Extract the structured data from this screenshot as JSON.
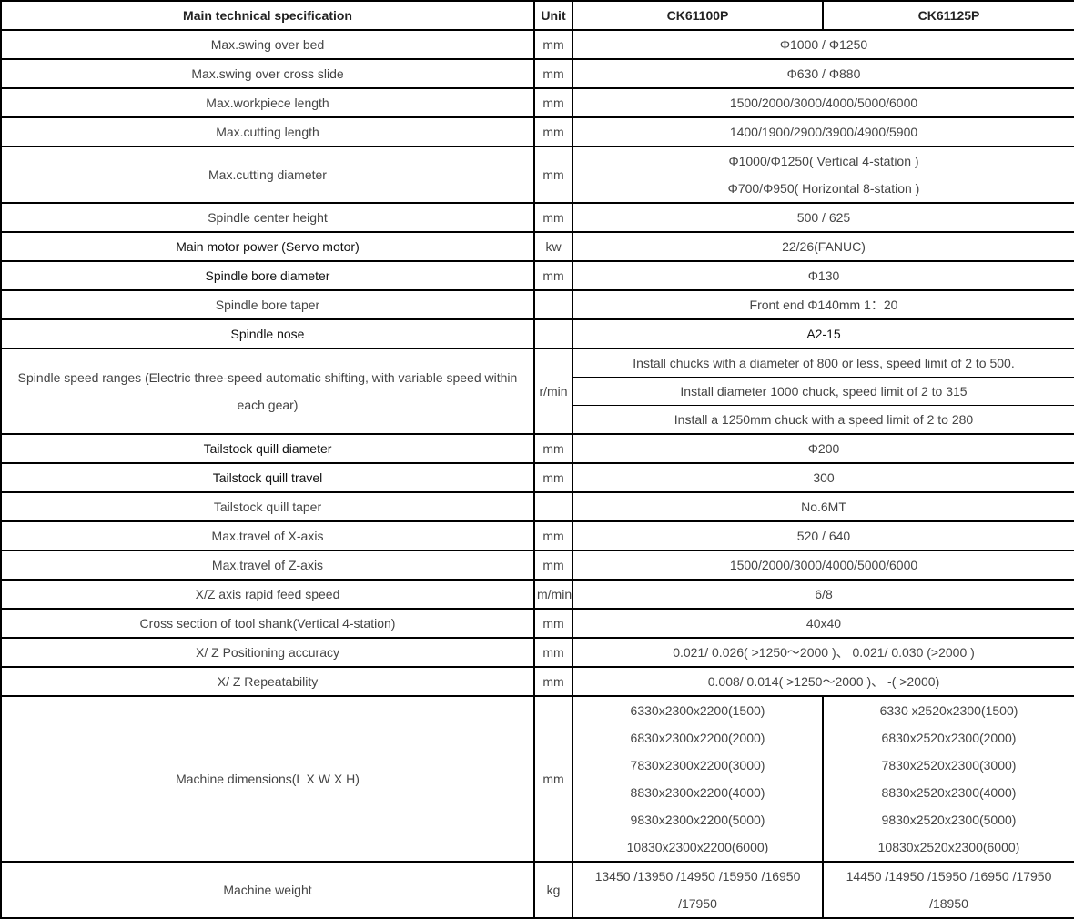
{
  "header": {
    "spec": "Main technical specification",
    "unit": "Unit",
    "model1": "CK61100P",
    "model2": "CK61125P"
  },
  "rows": [
    {
      "spec": "Max.swing over bed",
      "unit": "mm",
      "value": "Φ1000 / Φ1250"
    },
    {
      "spec": "Max.swing over cross slide",
      "unit": "mm",
      "value": "Φ630 / Φ880"
    },
    {
      "spec": "Max.workpiece length",
      "unit": "mm",
      "value": "1500/2000/3000/4000/5000/6000"
    },
    {
      "spec": "Max.cutting length",
      "unit": "mm",
      "value": "1400/1900/2900/3900/4900/5900"
    },
    {
      "spec": "Max.cutting diameter",
      "unit": "mm",
      "lines": [
        "Φ1000/Φ1250( Vertical 4-station )",
        "Φ700/Φ950( Horizontal 8-station )"
      ]
    },
    {
      "spec": "Spindle center height",
      "unit": "mm",
      "value": "500 / 625"
    },
    {
      "spec": "Main motor power (Servo motor)",
      "unit": "kw",
      "value": "22/26(FANUC)"
    },
    {
      "spec": "Spindle bore diameter",
      "unit": "mm",
      "value": "Φ130"
    },
    {
      "spec": "Spindle bore taper",
      "unit": "",
      "value": "Front end Φ140mm 1：20"
    },
    {
      "spec": "Spindle nose",
      "unit": "",
      "value": "A2-15"
    },
    {
      "spec": "Spindle speed ranges (Electric three-speed automatic shifting, with variable speed within each gear)",
      "unit": "r/min",
      "lines": [
        "Install chucks with a diameter of 800 or less, speed limit of 2 to 500.",
        "Install diameter 1000 chuck, speed limit of 2 to 315",
        "Install a 1250mm chuck with a speed limit of 2 to 280"
      ]
    },
    {
      "spec": "Tailstock quill diameter",
      "unit": "mm",
      "value": "Φ200"
    },
    {
      "spec": "Tailstock quill travel",
      "unit": "mm",
      "value": "300"
    },
    {
      "spec": "Tailstock quill taper",
      "unit": "",
      "value": "No.6MT"
    },
    {
      "spec": "Max.travel of X-axis",
      "unit": "mm",
      "value": "520 / 640"
    },
    {
      "spec": "Max.travel of Z-axis",
      "unit": "mm",
      "value": "1500/2000/3000/4000/5000/6000"
    },
    {
      "spec": "X/Z axis rapid feed speed",
      "unit": "m/min",
      "value": "6/8"
    },
    {
      "spec": "Cross section of tool shank(Vertical 4-station)",
      "unit": "mm",
      "value": "40x40"
    },
    {
      "spec": "X/ Z Positioning accuracy",
      "unit": "mm",
      "value": "0.021/ 0.026( >1250～2000 )、 0.021/ 0.030 (>2000 )"
    },
    {
      "spec": "X/ Z Repeatability",
      "unit": "mm",
      "value": "0.008/ 0.014( >1250～2000 )、 -( >2000)"
    },
    {
      "spec": "Machine dimensions(L X W X H)",
      "unit": "mm",
      "model1": [
        "6330x2300x2200(1500)",
        "6830x2300x2200(2000)",
        "7830x2300x2200(3000)",
        "8830x2300x2200(4000)",
        "9830x2300x2200(5000)",
        "10830x2300x2200(6000)"
      ],
      "model2": [
        "6330 x2520x2300(1500)",
        "6830x2520x2300(2000)",
        "7830x2520x2300(3000)",
        "8830x2520x2300(4000)",
        "9830x2520x2300(5000)",
        "10830x2520x2300(6000)"
      ]
    },
    {
      "spec": "Machine weight",
      "unit": "kg",
      "model1": "13450 /13950 /14950 /15950 /16950 /17950",
      "model2": "14450 /14950 /15950 /16950 /17950 /18950"
    }
  ]
}
